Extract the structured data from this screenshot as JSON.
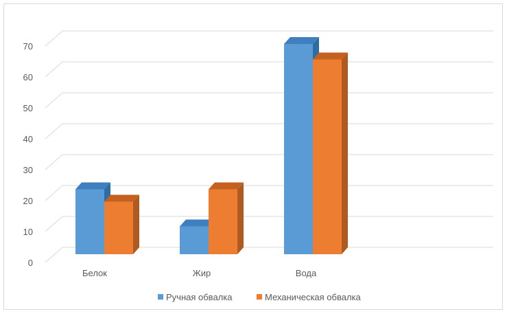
{
  "chart_data": {
    "type": "bar",
    "style": "3d-clustered-column",
    "categories": [
      "Белок",
      "Жир",
      "Вода"
    ],
    "series": [
      {
        "name": "Ручная обвалка",
        "values": [
          21,
          9,
          68
        ],
        "color": "#5B9BD5",
        "side_color": "#2E6DA4",
        "top_color": "#3F7FC0"
      },
      {
        "name": "Механическая обвалка",
        "values": [
          17,
          21,
          63
        ],
        "color": "#ED7D31",
        "side_color": "#B05A1F",
        "top_color": "#C4611E"
      }
    ],
    "y_ticks": [
      0,
      10,
      20,
      30,
      40,
      50,
      60,
      70
    ],
    "ylim": [
      0,
      75
    ],
    "grid": true,
    "legend_position": "bottom",
    "gridline_color": "#d9d9d9"
  }
}
